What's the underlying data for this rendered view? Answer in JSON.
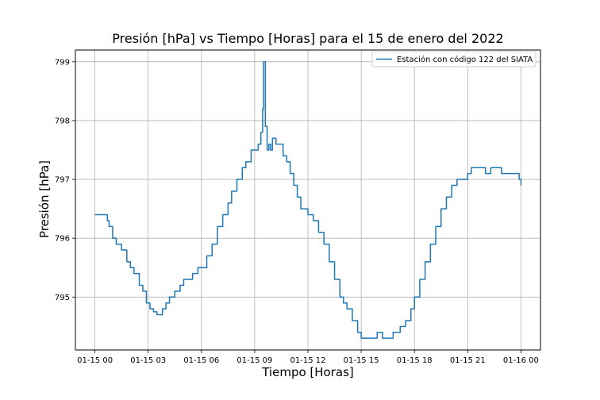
{
  "chart_data": {
    "type": "line",
    "title": "Presión [hPa] vs Tiempo [Horas] para el 15 de enero del 2022",
    "xlabel": "Tiempo [Horas]",
    "ylabel": "Presión [hPa]",
    "x_ticks": [
      0,
      3,
      6,
      9,
      12,
      15,
      18,
      21,
      24
    ],
    "x_tick_labels": [
      "01-15 00",
      "01-15 03",
      "01-15 06",
      "01-15 09",
      "01-15 12",
      "01-15 15",
      "01-15 18",
      "01-15 21",
      "01-16 00"
    ],
    "y_ticks": [
      795,
      796,
      797,
      798,
      799
    ],
    "y_tick_labels": [
      "795",
      "796",
      "797",
      "798",
      "799"
    ],
    "xlim": [
      -1.1,
      25.1
    ],
    "ylim": [
      794.1,
      799.2
    ],
    "grid": true,
    "legend_position": "top-right",
    "series": [
      {
        "name": "Estación con código 122 del SIATA",
        "color": "#1f77b4",
        "x": [
          0,
          0.5,
          0.7,
          0.8,
          1.0,
          1.2,
          1.5,
          1.8,
          2.0,
          2.2,
          2.5,
          2.7,
          2.9,
          3.1,
          3.3,
          3.5,
          3.8,
          4.0,
          4.2,
          4.5,
          4.8,
          5.0,
          5.2,
          5.5,
          5.8,
          6.0,
          6.3,
          6.6,
          6.9,
          7.2,
          7.5,
          7.7,
          8.0,
          8.3,
          8.5,
          8.8,
          9.0,
          9.2,
          9.35,
          9.45,
          9.5,
          9.6,
          9.7,
          9.8,
          9.9,
          10.0,
          10.2,
          10.4,
          10.6,
          10.8,
          11.0,
          11.2,
          11.4,
          11.6,
          11.8,
          12.0,
          12.3,
          12.6,
          12.9,
          13.2,
          13.5,
          13.8,
          14.0,
          14.2,
          14.5,
          14.8,
          15.0,
          15.3,
          15.6,
          15.9,
          16.2,
          16.5,
          16.8,
          17.2,
          17.5,
          17.8,
          18.0,
          18.3,
          18.6,
          18.9,
          19.2,
          19.5,
          19.8,
          20.1,
          20.4,
          20.7,
          21.0,
          21.2,
          21.4,
          21.6,
          21.8,
          22.0,
          22.3,
          22.6,
          22.9,
          23.2,
          23.5,
          23.7,
          23.9,
          24.0
        ],
        "y": [
          796.4,
          796.4,
          796.3,
          796.2,
          796.0,
          795.9,
          795.8,
          795.6,
          795.5,
          795.4,
          795.2,
          795.1,
          794.9,
          794.8,
          794.75,
          794.7,
          794.8,
          794.9,
          795.0,
          795.1,
          795.2,
          795.3,
          795.3,
          795.4,
          795.5,
          795.5,
          795.7,
          795.9,
          796.2,
          796.4,
          796.6,
          796.8,
          797.0,
          797.2,
          797.3,
          797.5,
          797.5,
          797.6,
          797.8,
          798.2,
          799.0,
          797.9,
          797.5,
          797.6,
          797.5,
          797.7,
          797.6,
          797.6,
          797.4,
          797.3,
          797.1,
          796.9,
          796.7,
          796.5,
          796.5,
          796.4,
          796.3,
          796.1,
          795.9,
          795.6,
          795.3,
          795.0,
          794.9,
          794.8,
          794.6,
          794.4,
          794.3,
          794.3,
          794.3,
          794.4,
          794.3,
          794.3,
          794.4,
          794.5,
          794.6,
          794.8,
          795.0,
          795.3,
          795.6,
          795.9,
          796.2,
          796.5,
          796.7,
          796.9,
          797.0,
          797.0,
          797.1,
          797.2,
          797.2,
          797.2,
          797.2,
          797.1,
          797.2,
          797.2,
          797.1,
          797.1,
          797.1,
          797.1,
          797.0,
          796.9
        ]
      }
    ]
  }
}
